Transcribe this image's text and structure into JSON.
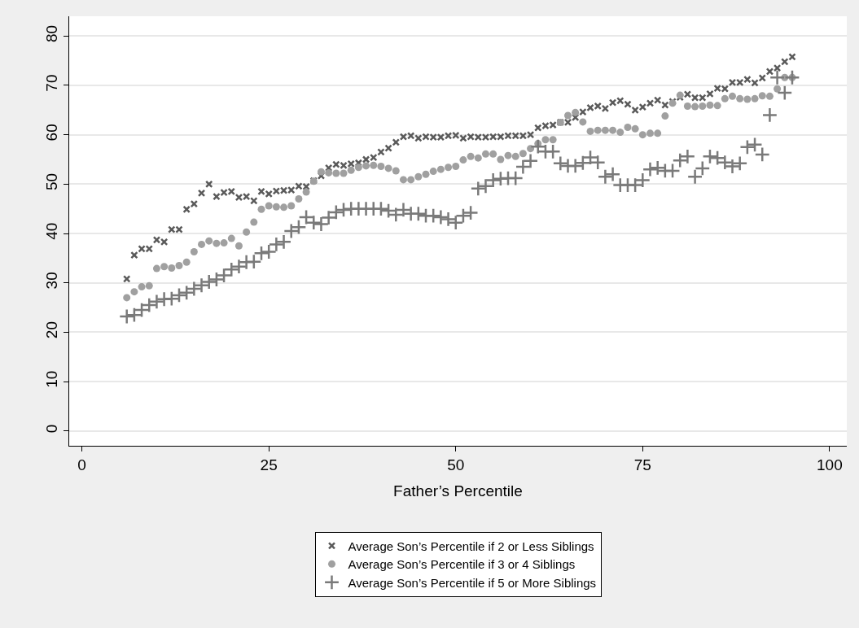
{
  "chart_data": {
    "type": "scatter",
    "xlabel": "Father’s Percentile",
    "x": [
      6,
      7,
      8,
      9,
      10,
      11,
      12,
      13,
      14,
      15,
      16,
      17,
      18,
      19,
      20,
      21,
      22,
      23,
      24,
      25,
      26,
      27,
      28,
      29,
      30,
      31,
      32,
      33,
      34,
      35,
      36,
      37,
      38,
      39,
      40,
      41,
      42,
      43,
      44,
      45,
      46,
      47,
      48,
      49,
      50,
      51,
      52,
      53,
      54,
      55,
      56,
      57,
      58,
      59,
      60,
      61,
      62,
      63,
      64,
      65,
      66,
      67,
      68,
      69,
      70,
      71,
      72,
      73,
      74,
      75,
      76,
      77,
      78,
      79,
      80,
      81,
      82,
      83,
      84,
      85,
      86,
      87,
      88,
      89,
      90,
      91,
      92,
      93,
      94,
      95
    ],
    "series": [
      {
        "name": "Average Son’s Percentile if 2 or Less Siblings",
        "color": "#5a5a5a",
        "marker": "x",
        "values": [
          30.8,
          35.6,
          36.9,
          36.9,
          38.7,
          38.3,
          40.8,
          40.8,
          44.9,
          46.0,
          48.2,
          50.0,
          47.5,
          48.3,
          48.5,
          47.3,
          47.5,
          46.6,
          48.5,
          48.0,
          48.6,
          48.7,
          48.8,
          49.6,
          49.5,
          50.7,
          51.7,
          53.3,
          54.0,
          53.8,
          54.1,
          54.3,
          55.0,
          55.4,
          56.5,
          57.3,
          58.5,
          59.6,
          59.8,
          59.3,
          59.6,
          59.5,
          59.5,
          59.8,
          59.9,
          59.3,
          59.6,
          59.5,
          59.5,
          59.6,
          59.6,
          59.8,
          59.8,
          59.8,
          60.0,
          61.4,
          61.8,
          62.0,
          62.5,
          62.5,
          63.5,
          64.6,
          65.5,
          65.8,
          65.3,
          66.5,
          66.9,
          66.2,
          65.0,
          65.6,
          66.4,
          67.0,
          66.0,
          66.7,
          67.6,
          68.2,
          67.5,
          67.5,
          68.3,
          69.4,
          69.3,
          70.6,
          70.6,
          71.2,
          70.5,
          71.5,
          72.8,
          73.5,
          74.8,
          75.8
        ]
      },
      {
        "name": "Average Son’s Percentile if 3 or 4 Siblings",
        "color": "#a0a0a0",
        "marker": "circle",
        "values": [
          27.0,
          28.2,
          29.2,
          29.4,
          32.9,
          33.3,
          33.0,
          33.5,
          34.2,
          36.3,
          37.8,
          38.5,
          38.0,
          38.1,
          39.0,
          37.5,
          40.3,
          42.3,
          44.9,
          45.6,
          45.4,
          45.3,
          45.6,
          47.0,
          48.4,
          50.6,
          52.5,
          52.3,
          52.2,
          52.2,
          52.8,
          53.4,
          53.7,
          53.8,
          53.6,
          53.2,
          52.7,
          50.9,
          50.9,
          51.5,
          52.0,
          52.6,
          53.0,
          53.4,
          53.6,
          54.9,
          55.6,
          55.3,
          56.1,
          56.1,
          55.0,
          55.8,
          55.6,
          56.2,
          57.2,
          58.2,
          59.0,
          59.0,
          62.5,
          63.9,
          64.5,
          62.6,
          60.7,
          60.9,
          60.9,
          60.9,
          60.5,
          61.5,
          61.2,
          60.0,
          60.3,
          60.3,
          63.8,
          66.4,
          68.0,
          65.8,
          65.7,
          65.8,
          66.0,
          65.9,
          67.3,
          67.8,
          67.3,
          67.2,
          67.3,
          67.9,
          67.8,
          69.3,
          71.6,
          71.6
        ]
      },
      {
        "name": "Average Son’s Percentile if 5 or More Siblings",
        "color": "#7a7a7a",
        "marker": "cross",
        "values": [
          23.2,
          23.5,
          24.5,
          25.5,
          26.2,
          26.7,
          26.8,
          27.5,
          28.0,
          28.8,
          29.5,
          30.2,
          30.7,
          31.5,
          32.7,
          33.3,
          34.2,
          34.3,
          36.0,
          36.3,
          37.8,
          38.3,
          40.5,
          41.3,
          43.3,
          42.2,
          41.9,
          43.2,
          44.3,
          44.8,
          45.0,
          45.0,
          45.0,
          45.0,
          45.0,
          44.6,
          43.8,
          44.8,
          44.0,
          44.0,
          43.6,
          43.6,
          43.3,
          42.9,
          42.2,
          43.6,
          44.2,
          49.1,
          49.6,
          50.8,
          51.1,
          51.2,
          51.2,
          53.5,
          54.7,
          57.6,
          56.6,
          56.6,
          54.2,
          53.7,
          53.7,
          54.3,
          55.4,
          54.4,
          51.5,
          52.0,
          49.8,
          49.8,
          49.8,
          50.8,
          53.0,
          53.3,
          52.7,
          52.7,
          54.8,
          55.6,
          51.5,
          53.2,
          55.6,
          55.3,
          54.4,
          53.6,
          54.2,
          57.5,
          58.0,
          56.0,
          64.0,
          71.6,
          68.5,
          71.6
        ]
      }
    ],
    "xlim": [
      -1.7,
      102.3
    ],
    "xticks": [
      0,
      25,
      50,
      75,
      100
    ],
    "ylim": [
      -3,
      84
    ],
    "yticks": [
      0,
      10,
      20,
      30,
      40,
      50,
      60,
      70,
      80
    ],
    "grid": "y",
    "legend": "bottom"
  }
}
